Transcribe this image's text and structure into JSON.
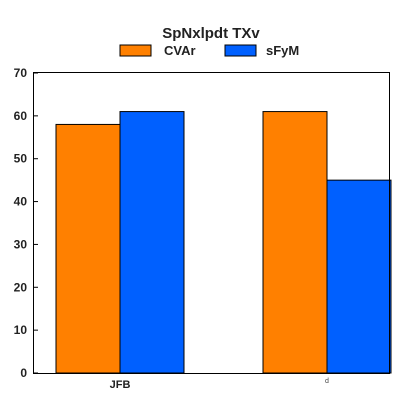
{
  "chart_data": {
    "type": "bar",
    "title": "SpNxlpdt TXv",
    "categories": [
      "JFB",
      "d"
    ],
    "series": [
      {
        "name": "CVAr",
        "color": "#ff8000",
        "values": [
          58,
          61
        ]
      },
      {
        "name": "sFyM",
        "color": "#0060ff",
        "values": [
          61,
          45
        ]
      }
    ],
    "xlabel": "",
    "ylabel": "",
    "ylim": [
      0,
      70
    ],
    "yticks": [
      0,
      10,
      20,
      30,
      40,
      50,
      60,
      70
    ],
    "grid": false,
    "legend_position": "top-center"
  }
}
